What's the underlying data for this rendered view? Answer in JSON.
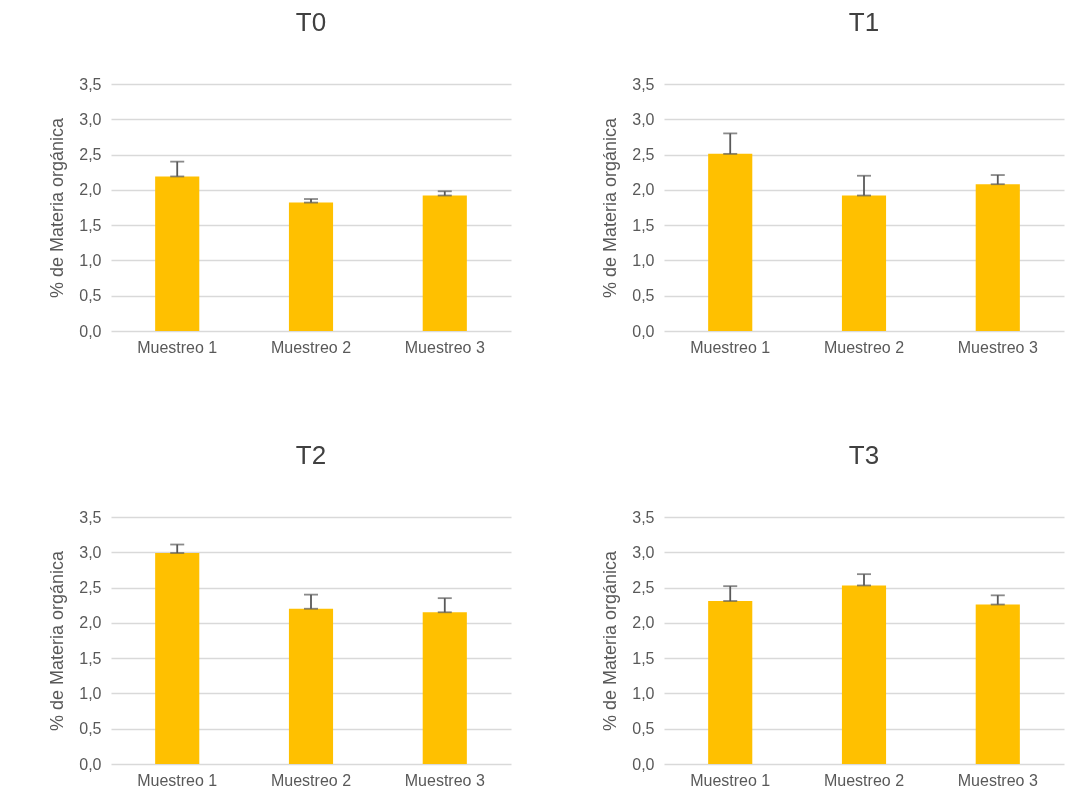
{
  "chart_data": [
    {
      "type": "bar",
      "title": "T0",
      "ylabel": "% de Materia orgánica",
      "categories": [
        "Muestreo 1",
        "Muestreo 2",
        "Muestreo 3"
      ],
      "series": [
        {
          "color": "#ffc000",
          "values": [
            2.19,
            1.82,
            1.92
          ],
          "errors": [
            [
              2.19,
              2.4
            ],
            [
              1.82,
              1.87
            ],
            [
              1.92,
              1.98
            ]
          ]
        }
      ],
      "ylim": [
        0,
        3.5
      ],
      "yticks": [
        {
          "value": 0,
          "label": "0,0"
        },
        {
          "value": 0.5,
          "label": "0,5"
        },
        {
          "value": 1,
          "label": "1,0"
        },
        {
          "value": 1.5,
          "label": "1,5"
        },
        {
          "value": 2,
          "label": "2,0"
        },
        {
          "value": 2.5,
          "label": "2,5"
        },
        {
          "value": 3,
          "label": "3,0"
        },
        {
          "value": 3.5,
          "label": "3,5"
        }
      ],
      "grid": "y"
    },
    {
      "type": "bar",
      "title": "T1",
      "ylabel": "% de Materia orgánica",
      "categories": [
        "Muestreo 1",
        "Muestreo 2",
        "Muestreo 3"
      ],
      "series": [
        {
          "color": "#ffc000",
          "values": [
            2.51,
            1.92,
            2.08
          ],
          "errors": [
            [
              2.51,
              2.8
            ],
            [
              1.92,
              2.2
            ],
            [
              2.08,
              2.21
            ]
          ]
        }
      ],
      "ylim": [
        0,
        3.5
      ],
      "yticks": [
        {
          "value": 0,
          "label": "0,0"
        },
        {
          "value": 0.5,
          "label": "0,5"
        },
        {
          "value": 1,
          "label": "1,0"
        },
        {
          "value": 1.5,
          "label": "1,5"
        },
        {
          "value": 2,
          "label": "2,0"
        },
        {
          "value": 2.5,
          "label": "2,5"
        },
        {
          "value": 3,
          "label": "3,0"
        },
        {
          "value": 3.5,
          "label": "3,5"
        }
      ],
      "grid": "y"
    },
    {
      "type": "bar",
      "title": "T2",
      "ylabel": "% de Materia orgánica",
      "categories": [
        "Muestreo 1",
        "Muestreo 2",
        "Muestreo 3"
      ],
      "series": [
        {
          "color": "#ffc000",
          "values": [
            2.99,
            2.2,
            2.15
          ],
          "errors": [
            [
              2.99,
              3.11
            ],
            [
              2.2,
              2.4
            ],
            [
              2.15,
              2.35
            ]
          ]
        }
      ],
      "ylim": [
        0,
        3.5
      ],
      "yticks": [
        {
          "value": 0,
          "label": "0,0"
        },
        {
          "value": 0.5,
          "label": "0,5"
        },
        {
          "value": 1,
          "label": "1,0"
        },
        {
          "value": 1.5,
          "label": "1,5"
        },
        {
          "value": 2,
          "label": "2,0"
        },
        {
          "value": 2.5,
          "label": "2,5"
        },
        {
          "value": 3,
          "label": "3,0"
        },
        {
          "value": 3.5,
          "label": "3,5"
        }
      ],
      "grid": "y"
    },
    {
      "type": "bar",
      "title": "T3",
      "ylabel": "% de Materia orgánica",
      "categories": [
        "Muestreo 1",
        "Muestreo 2",
        "Muestreo 3"
      ],
      "series": [
        {
          "color": "#ffc000",
          "values": [
            2.31,
            2.53,
            2.26
          ],
          "errors": [
            [
              2.31,
              2.52
            ],
            [
              2.53,
              2.69
            ],
            [
              2.26,
              2.39
            ]
          ]
        }
      ],
      "ylim": [
        0,
        3.5
      ],
      "yticks": [
        {
          "value": 0,
          "label": "0,0"
        },
        {
          "value": 0.5,
          "label": "0,5"
        },
        {
          "value": 1,
          "label": "1,0"
        },
        {
          "value": 1.5,
          "label": "1,5"
        },
        {
          "value": 2,
          "label": "2,0"
        },
        {
          "value": 2.5,
          "label": "2,5"
        },
        {
          "value": 3,
          "label": "3,0"
        },
        {
          "value": 3.5,
          "label": "3,5"
        }
      ],
      "grid": "y"
    }
  ]
}
